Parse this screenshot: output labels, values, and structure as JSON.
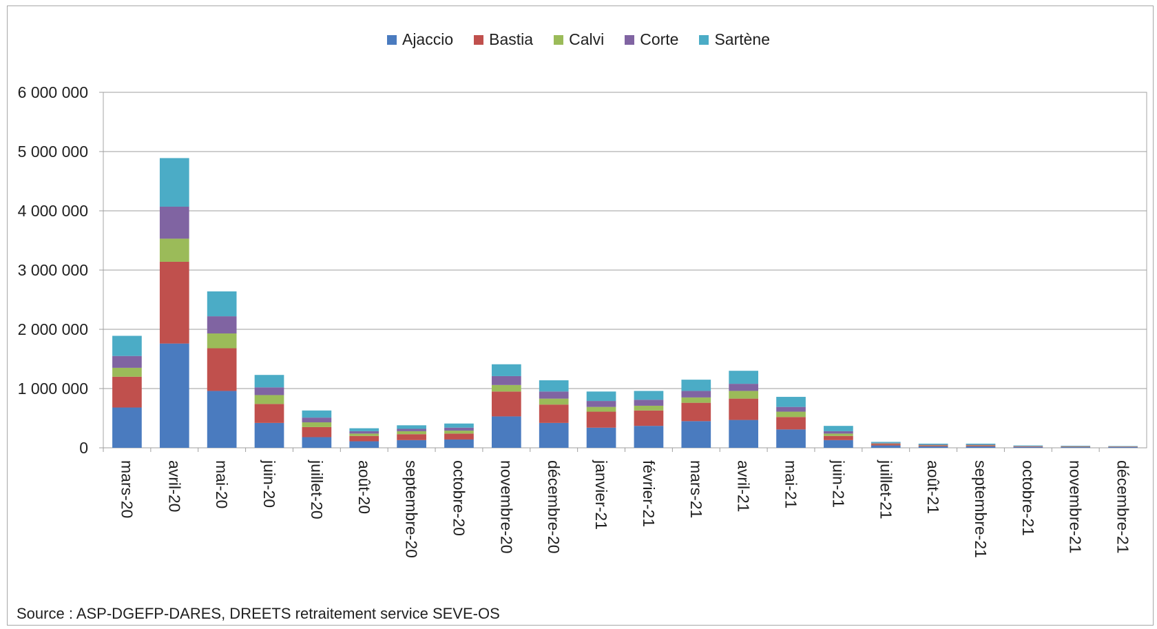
{
  "chart_data": {
    "type": "bar",
    "stacked": true,
    "categories": [
      "mars-20",
      "avril-20",
      "mai-20",
      "juin-20",
      "juillet-20",
      "août-20",
      "septembre-20",
      "octobre-20",
      "novembre-20",
      "décembre-20",
      "janvier-21",
      "février-21",
      "mars-21",
      "avril-21",
      "mai-21",
      "juin-21",
      "juillet-21",
      "août-21",
      "septembre-21",
      "octobre-21",
      "novembre-21",
      "décembre-21"
    ],
    "series": [
      {
        "name": "Ajaccio",
        "color": "#4a7bbf",
        "values": [
          680000,
          1760000,
          960000,
          420000,
          180000,
          110000,
          130000,
          140000,
          530000,
          420000,
          340000,
          370000,
          450000,
          470000,
          310000,
          130000,
          40000,
          25000,
          25000,
          15000,
          12000,
          12000
        ]
      },
      {
        "name": "Bastia",
        "color": "#c0504d",
        "values": [
          520000,
          1380000,
          720000,
          320000,
          170000,
          90000,
          100000,
          100000,
          420000,
          310000,
          270000,
          260000,
          310000,
          360000,
          210000,
          70000,
          25000,
          15000,
          15000,
          8000,
          8000,
          6000
        ]
      },
      {
        "name": "Calvi",
        "color": "#9bbb59",
        "values": [
          150000,
          390000,
          250000,
          150000,
          80000,
          40000,
          50000,
          50000,
          110000,
          100000,
          80000,
          80000,
          90000,
          130000,
          90000,
          40000,
          8000,
          6000,
          6000,
          3000,
          3000,
          3000
        ]
      },
      {
        "name": "Corte",
        "color": "#8064a2",
        "values": [
          200000,
          540000,
          290000,
          130000,
          80000,
          40000,
          40000,
          50000,
          150000,
          120000,
          100000,
          100000,
          110000,
          120000,
          80000,
          40000,
          10000,
          8000,
          8000,
          4000,
          4000,
          3000
        ]
      },
      {
        "name": "Sartène",
        "color": "#4bacc6",
        "values": [
          340000,
          820000,
          420000,
          210000,
          120000,
          50000,
          60000,
          70000,
          200000,
          190000,
          160000,
          150000,
          190000,
          220000,
          170000,
          90000,
          17000,
          16000,
          16000,
          10000,
          8000,
          6000
        ]
      }
    ],
    "yticks": [
      "0",
      "1 000 000",
      "2 000 000",
      "3 000 000",
      "4 000 000",
      "5 000 000",
      "6 000 000"
    ],
    "ylim": [
      0,
      6000000
    ],
    "grid": true,
    "legend_position": "top",
    "title": "",
    "xlabel": "",
    "ylabel": ""
  },
  "source_note": "Source : ASP-DGEFP-DARES, DREETS retraitement service SEVE-OS"
}
